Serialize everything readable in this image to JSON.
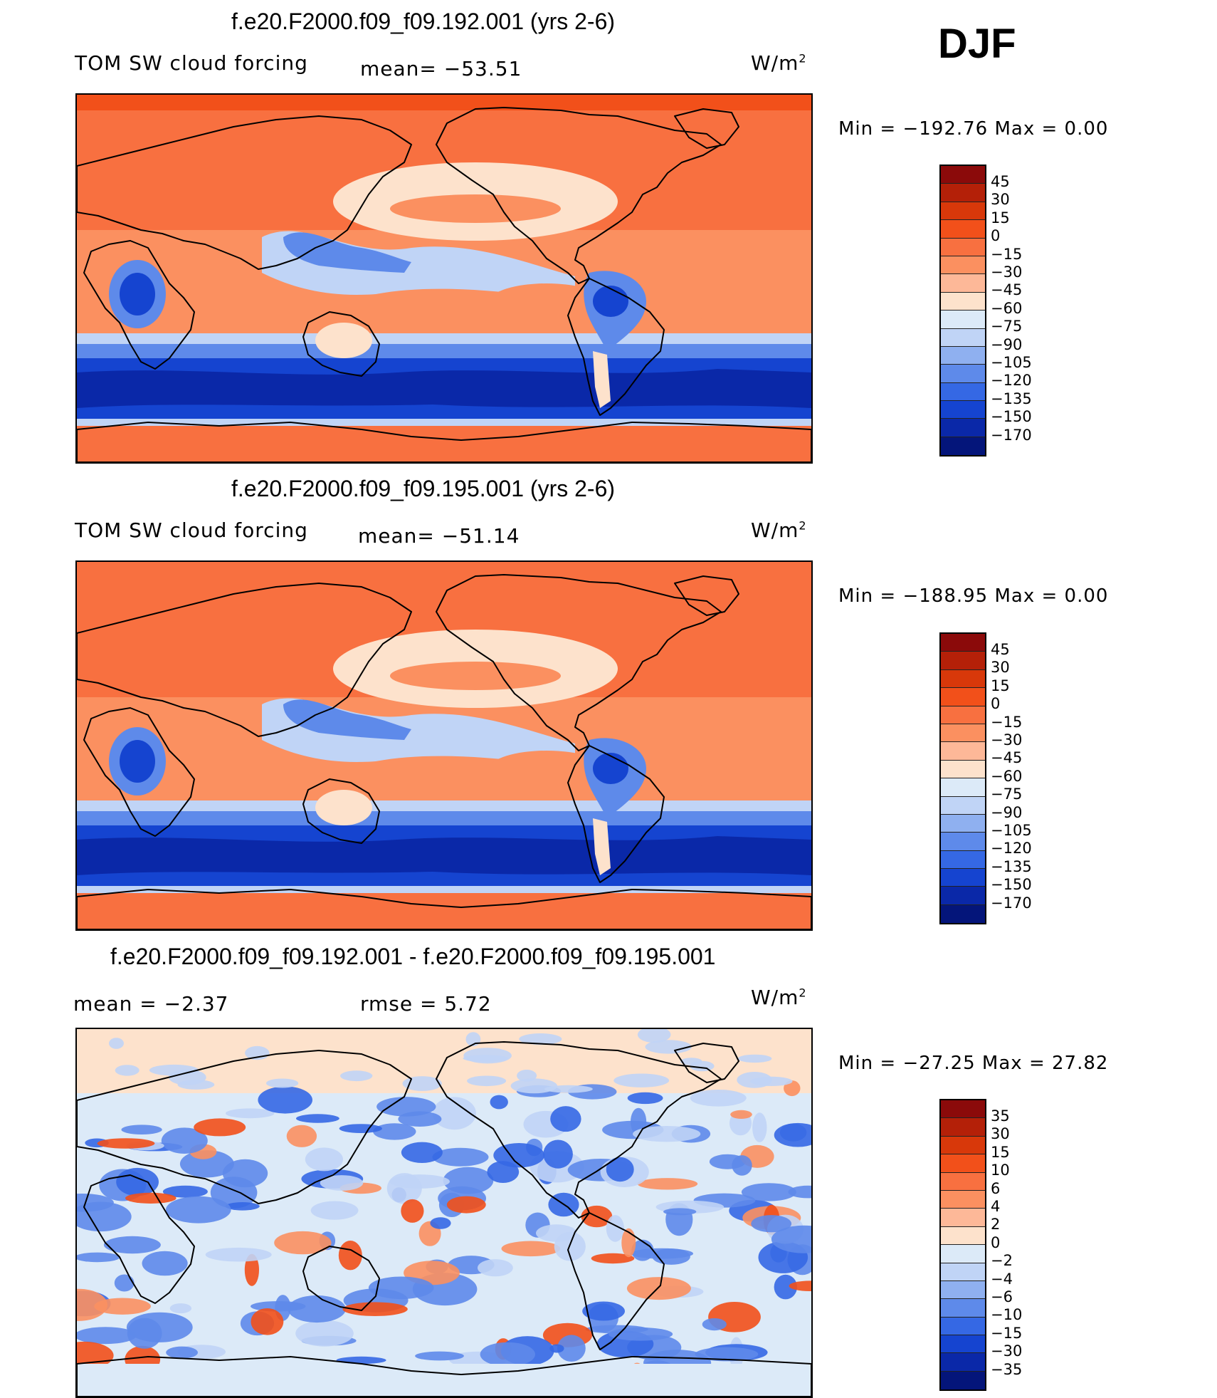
{
  "season": "DJF",
  "panels": [
    {
      "title": "f.e20.F2000.f09_f09.192.001 (yrs 2-6)",
      "left_label": "TOM SW cloud forcing",
      "mid_label": "mean= −53.51",
      "units": "W/m",
      "units_sup": "2",
      "minmax": "Min  =  −192.76  Max  =      0.00",
      "colorbar": {
        "ticks": [
          "45",
          "30",
          "15",
          "0",
          "−15",
          "−30",
          "−45",
          "−60",
          "−75",
          "−90",
          "−105",
          "−120",
          "−135",
          "−150",
          "−170"
        ],
        "colors": [
          "#8b0a0a",
          "#b42008",
          "#d8380a",
          "#f2501a",
          "#f87040",
          "#fb9060",
          "#fdb898",
          "#fde2cc",
          "#dceaf8",
          "#c0d4f6",
          "#8fb0f0",
          "#5e8aea",
          "#3568e4",
          "#1544d0",
          "#0a28a8",
          "#04157a"
        ]
      },
      "map_style": "mean",
      "map_colors": {
        "land": "#f87040",
        "polar": "#f87040",
        "arctic_top": "#f2501a",
        "subtrop": "#fb9060",
        "light": "#fde2cc",
        "lblue": "#c0d4f6",
        "mblue": "#5e8aea",
        "dblue": "#1544d0",
        "vdblue": "#0a28a8"
      }
    },
    {
      "title": "f.e20.F2000.f09_f09.195.001 (yrs 2-6)",
      "left_label": "TOM SW cloud forcing",
      "mid_label": "mean= −51.14",
      "units": "W/m",
      "units_sup": "2",
      "minmax": "Min  =  −188.95  Max  =      0.00",
      "colorbar": {
        "ticks": [
          "45",
          "30",
          "15",
          "0",
          "−15",
          "−30",
          "−45",
          "−60",
          "−75",
          "−90",
          "−105",
          "−120",
          "−135",
          "−150",
          "−170"
        ],
        "colors": [
          "#8b0a0a",
          "#b42008",
          "#d8380a",
          "#f2501a",
          "#f87040",
          "#fb9060",
          "#fdb898",
          "#fde2cc",
          "#dceaf8",
          "#c0d4f6",
          "#8fb0f0",
          "#5e8aea",
          "#3568e4",
          "#1544d0",
          "#0a28a8",
          "#04157a"
        ]
      },
      "map_style": "mean",
      "map_colors": {
        "land": "#f87040",
        "polar": "#f87040",
        "arctic_top": "#f87040",
        "subtrop": "#fb9060",
        "light": "#fde2cc",
        "lblue": "#c0d4f6",
        "mblue": "#5e8aea",
        "dblue": "#1544d0",
        "vdblue": "#0a28a8"
      }
    },
    {
      "title": "f.e20.F2000.f09_f09.192.001 - f.e20.F2000.f09_f09.195.001",
      "left_label": "mean  =     −2.37",
      "mid_label": "rmse  =      5.72",
      "units": "W/m",
      "units_sup": "2",
      "minmax": "Min  =  −27.25  Max  =    27.82",
      "colorbar": {
        "ticks": [
          "35",
          "30",
          "15",
          "10",
          "6",
          "4",
          "2",
          "0",
          "−2",
          "−4",
          "−6",
          "−10",
          "−15",
          "−30",
          "−35"
        ],
        "colors": [
          "#8b0a0a",
          "#b42008",
          "#d8380a",
          "#f2501a",
          "#f87040",
          "#fb9060",
          "#fdb898",
          "#fde2cc",
          "#dceaf8",
          "#c0d4f6",
          "#8fb0f0",
          "#5e8aea",
          "#3568e4",
          "#1544d0",
          "#0a28a8",
          "#04157a"
        ]
      },
      "map_style": "diff",
      "map_colors": {
        "base": "#dceaf8",
        "light": "#fde2cc",
        "lblue": "#c0d4f6",
        "mblue": "#5e8aea",
        "dblue": "#3568e4",
        "red": "#f2501a",
        "orange": "#fb9060"
      }
    }
  ]
}
